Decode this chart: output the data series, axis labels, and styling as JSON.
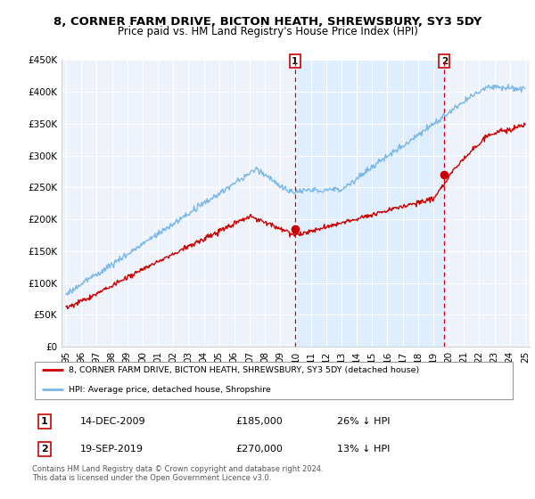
{
  "title": "8, CORNER FARM DRIVE, BICTON HEATH, SHREWSBURY, SY3 5DY",
  "subtitle": "Price paid vs. HM Land Registry's House Price Index (HPI)",
  "title_fontsize": 9.5,
  "subtitle_fontsize": 8.5,
  "ylim": [
    0,
    450000
  ],
  "yticks": [
    0,
    50000,
    100000,
    150000,
    200000,
    250000,
    300000,
    350000,
    400000,
    450000
  ],
  "ytick_labels": [
    "£0",
    "£50K",
    "£100K",
    "£150K",
    "£200K",
    "£250K",
    "£300K",
    "£350K",
    "£400K",
    "£450K"
  ],
  "xlim_start": 1994.7,
  "xlim_end": 2025.3,
  "hpi_color": "#7ab8e8",
  "hpi_shade_color": "#ddeeff",
  "property_color": "#cc0000",
  "marker1_date": 2009.96,
  "marker1_price": 185000,
  "marker1_label": "1",
  "marker2_date": 2019.72,
  "marker2_price": 270000,
  "marker2_label": "2",
  "legend_property": "8, CORNER FARM DRIVE, BICTON HEATH, SHREWSBURY, SY3 5DY (detached house)",
  "legend_hpi": "HPI: Average price, detached house, Shropshire",
  "table_row1": [
    "1",
    "14-DEC-2009",
    "£185,000",
    "26% ↓ HPI"
  ],
  "table_row2": [
    "2",
    "19-SEP-2019",
    "£270,000",
    "13% ↓ HPI"
  ],
  "footnote": "Contains HM Land Registry data © Crown copyright and database right 2024.\nThis data is licensed under the Open Government Licence v3.0.",
  "plot_bg_color": "#eef3fb"
}
